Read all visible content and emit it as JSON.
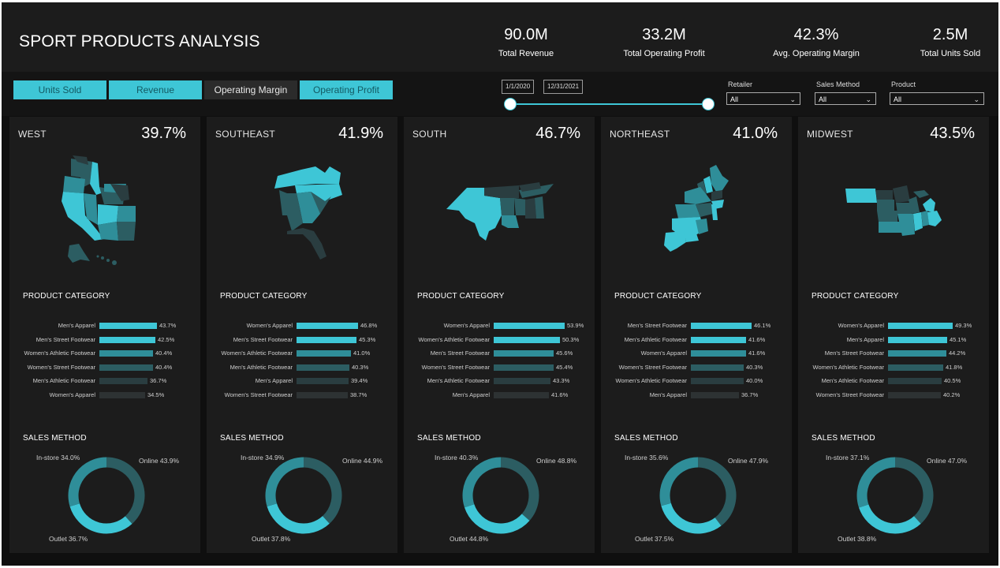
{
  "title": "SPORT PRODUCTS ANALYSIS",
  "kpis": [
    {
      "value": "90.0M",
      "label": "Total Revenue"
    },
    {
      "value": "33.2M",
      "label": "Total Operating Profit"
    },
    {
      "value": "42.3%",
      "label": "Avg. Operating Margin"
    },
    {
      "value": "2.5M",
      "label": "Total Units Sold"
    }
  ],
  "metric_tabs": [
    {
      "label": "Units Sold",
      "active": true
    },
    {
      "label": "Revenue",
      "active": true
    },
    {
      "label": "Operating Margin",
      "active": false
    },
    {
      "label": "Operating Profit",
      "active": true
    }
  ],
  "date_range": {
    "start": "1/1/2020",
    "end": "12/31/2021"
  },
  "filters": [
    {
      "label": "Retailer",
      "value": "All"
    },
    {
      "label": "Sales Method",
      "value": "All"
    },
    {
      "label": "Product",
      "value": "All"
    }
  ],
  "section_titles": {
    "product": "PRODUCT CATEGORY",
    "sales": "SALES METHOD"
  },
  "colors": {
    "accent": "#3ec6d6",
    "mid": "#2f8e99",
    "dark": "#2c5d62",
    "darker": "#2a3d40",
    "darkest": "#2d3233"
  },
  "regions": [
    {
      "name": "WEST",
      "value": "39.7%",
      "products": [
        {
          "label": "Men's Apparel",
          "value": 43.7,
          "display": "43.7%"
        },
        {
          "label": "Men's Street Footwear",
          "value": 42.5,
          "display": "42.5%"
        },
        {
          "label": "Women's Athletic Footwear",
          "value": 40.4,
          "display": "40.4%"
        },
        {
          "label": "Women's Street Footwear",
          "value": 40.4,
          "display": "40.4%"
        },
        {
          "label": "Men's Athletic Footwear",
          "value": 36.7,
          "display": "36.7%"
        },
        {
          "label": "Women's Apparel",
          "value": 34.5,
          "display": "34.5%"
        }
      ],
      "sales": {
        "instore": 34.0,
        "online": 43.9,
        "outlet": 36.7,
        "instore_label": "In-store 34.0%",
        "online_label": "Online 43.9%",
        "outlet_label": "Outlet 36.7%"
      }
    },
    {
      "name": "SOUTHEAST",
      "value": "41.9%",
      "products": [
        {
          "label": "Women's Apparel",
          "value": 46.8,
          "display": "46.8%"
        },
        {
          "label": "Men's Street Footwear",
          "value": 45.3,
          "display": "45.3%"
        },
        {
          "label": "Women's Athletic Footwear",
          "value": 41.0,
          "display": "41.0%"
        },
        {
          "label": "Men's Athletic Footwear",
          "value": 40.3,
          "display": "40.3%"
        },
        {
          "label": "Men's Apparel",
          "value": 39.4,
          "display": "39.4%"
        },
        {
          "label": "Women's Street Footwear",
          "value": 38.7,
          "display": "38.7%"
        }
      ],
      "sales": {
        "instore": 34.9,
        "online": 44.9,
        "outlet": 37.8,
        "instore_label": "In-store 34.9%",
        "online_label": "Online 44.9%",
        "outlet_label": "Outlet 37.8%"
      }
    },
    {
      "name": "SOUTH",
      "value": "46.7%",
      "products": [
        {
          "label": "Women's Apparel",
          "value": 53.9,
          "display": "53.9%"
        },
        {
          "label": "Women's Athletic Footwear",
          "value": 50.3,
          "display": "50.3%"
        },
        {
          "label": "Men's Street Footwear",
          "value": 45.6,
          "display": "45.6%"
        },
        {
          "label": "Women's Street Footwear",
          "value": 45.4,
          "display": "45.4%"
        },
        {
          "label": "Men's Athletic Footwear",
          "value": 43.3,
          "display": "43.3%"
        },
        {
          "label": "Men's Apparel",
          "value": 41.6,
          "display": "41.6%"
        }
      ],
      "sales": {
        "instore": 40.3,
        "online": 48.8,
        "outlet": 44.8,
        "instore_label": "In-store 40.3%",
        "online_label": "Online 48.8%",
        "outlet_label": "Outlet 44.8%"
      }
    },
    {
      "name": "NORTHEAST",
      "value": "41.0%",
      "products": [
        {
          "label": "Men's Street Footwear",
          "value": 46.1,
          "display": "46.1%"
        },
        {
          "label": "Men's Athletic Footwear",
          "value": 41.6,
          "display": "41.6%"
        },
        {
          "label": "Women's Apparel",
          "value": 41.6,
          "display": "41.6%"
        },
        {
          "label": "Women's Street Footwear",
          "value": 40.3,
          "display": "40.3%"
        },
        {
          "label": "Women's Athletic Footwear",
          "value": 40.0,
          "display": "40.0%"
        },
        {
          "label": "Men's Apparel",
          "value": 36.7,
          "display": "36.7%"
        }
      ],
      "sales": {
        "instore": 35.6,
        "online": 47.9,
        "outlet": 37.5,
        "instore_label": "In-store 35.6%",
        "online_label": "Online 47.9%",
        "outlet_label": "Outlet 37.5%"
      }
    },
    {
      "name": "MIDWEST",
      "value": "43.5%",
      "products": [
        {
          "label": "Women's Apparel",
          "value": 49.3,
          "display": "49.3%"
        },
        {
          "label": "Men's Apparel",
          "value": 45.1,
          "display": "45.1%"
        },
        {
          "label": "Men's Street Footwear",
          "value": 44.2,
          "display": "44.2%"
        },
        {
          "label": "Women's Athletic Footwear",
          "value": 41.8,
          "display": "41.8%"
        },
        {
          "label": "Men's Athletic Footwear",
          "value": 40.5,
          "display": "40.5%"
        },
        {
          "label": "Women's Street Footwear",
          "value": 40.2,
          "display": "40.2%"
        }
      ],
      "sales": {
        "instore": 37.1,
        "online": 47.0,
        "outlet": 38.8,
        "instore_label": "In-store 37.1%",
        "online_label": "Online 47.0%",
        "outlet_label": "Outlet 38.8%"
      }
    }
  ]
}
